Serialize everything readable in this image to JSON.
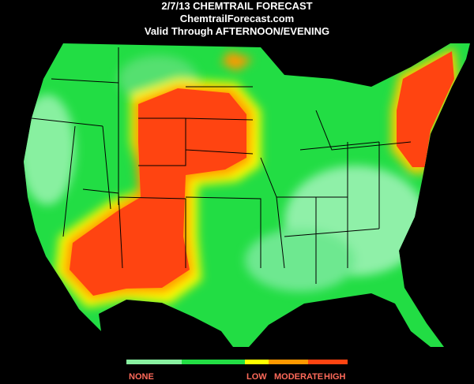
{
  "header": {
    "lines": [
      "2/7/13 CHEMTRAIL FORECAST",
      "ChemtrailForecast.com",
      "Valid Through AFTERNOON/EVENING"
    ]
  },
  "legend": {
    "labels": [
      "NONE",
      "LOW",
      "MODERATE",
      "HIGH"
    ]
  }
}
